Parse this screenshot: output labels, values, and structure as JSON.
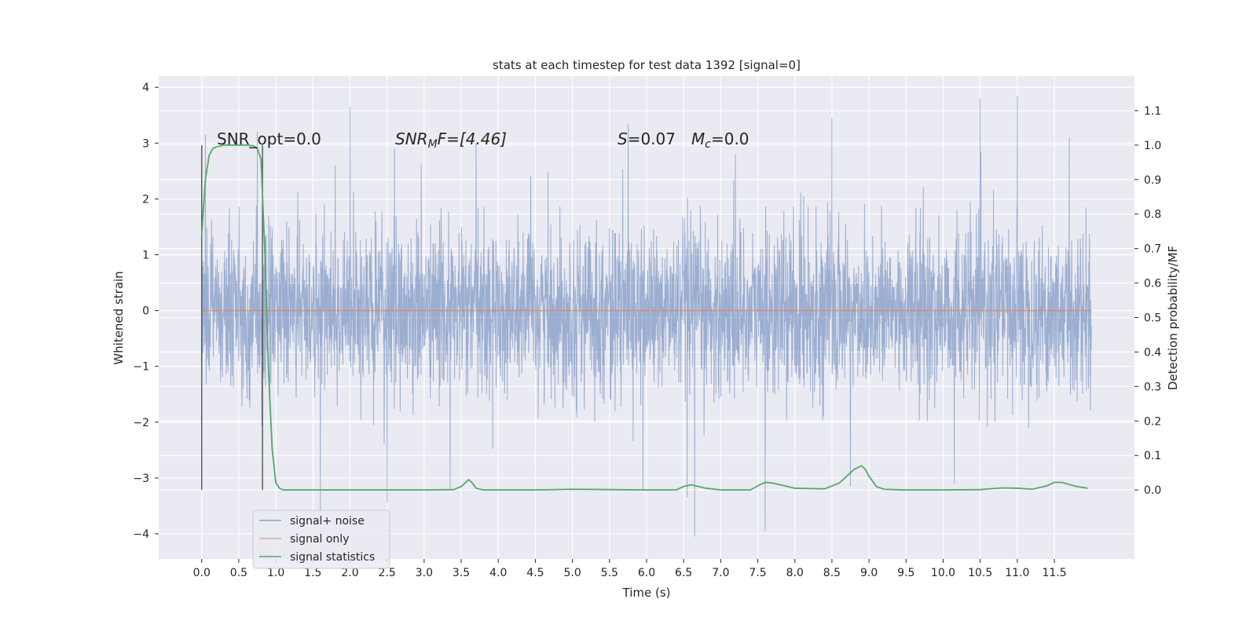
{
  "chart_data": {
    "type": "line",
    "title": "stats at each timestep for test data 1392 [signal=0]",
    "xlabel": "Time (s)",
    "ylabel_left": "Whitened strain",
    "ylabel_right": "Detection probability/MF",
    "xlim": [
      -0.58,
      12.58
    ],
    "ylim_left": [
      -4.45,
      4.2
    ],
    "ylim_right": [
      -0.2,
      1.2
    ],
    "xticks": [
      "0.0",
      "0.5",
      "1.0",
      "1.5",
      "2.0",
      "2.5",
      "3.0",
      "3.5",
      "4.0",
      "4.5",
      "5.0",
      "5.5",
      "6.0",
      "6.5",
      "7.0",
      "7.5",
      "8.0",
      "8.5",
      "9.0",
      "9.5",
      "10.0",
      "10.5",
      "11.0",
      "11.5"
    ],
    "yticks_left": [
      "4",
      "3",
      "2",
      "1",
      "0",
      "−1",
      "−2",
      "−3",
      "−4"
    ],
    "yticks_right": [
      "1.1",
      "1.0",
      "0.9",
      "0.8",
      "0.7",
      "0.6",
      "0.5",
      "0.4",
      "0.3",
      "0.2",
      "0.1",
      "0.0"
    ],
    "grid": true,
    "legend_position": "lower-left",
    "annotations": {
      "snr_opt": "SNR_opt=0.0",
      "snr_mf_sym": "SNR",
      "snr_mf_sub": "M",
      "snr_mf_rest": "F=[4.46]",
      "s_sym": "S",
      "s_val": "=0.07",
      "mc_sym": "M",
      "mc_sub": "c",
      "mc_val": "=0.0"
    },
    "window_markers": [
      0.0,
      0.82
    ],
    "series": [
      {
        "name": "signal+ noise",
        "color": "#4c72b0",
        "kind": "noise",
        "x_range": [
          0.0,
          12.0
        ],
        "typical_amplitude": 1.2,
        "peaks": [
          [
            0.05,
            3.15
          ],
          [
            0.75,
            3.2
          ],
          [
            1.8,
            2.6
          ],
          [
            2.0,
            3.65
          ],
          [
            2.6,
            2.9
          ],
          [
            3.7,
            3.0
          ],
          [
            5.75,
            3.35
          ],
          [
            7.2,
            2.8
          ],
          [
            8.5,
            3.45
          ],
          [
            10.5,
            3.8
          ],
          [
            11.0,
            3.85
          ],
          [
            11.7,
            3.1
          ]
        ],
        "troughs": [
          [
            1.6,
            -3.65
          ],
          [
            2.5,
            -3.45
          ],
          [
            3.35,
            -3.2
          ],
          [
            5.95,
            -3.2
          ],
          [
            6.55,
            -3.35
          ],
          [
            6.65,
            -4.05
          ],
          [
            7.6,
            -3.95
          ],
          [
            8.75,
            -3.15
          ],
          [
            10.15,
            -3.1
          ]
        ]
      },
      {
        "name": "signal only",
        "color": "#dd8452",
        "kind": "flat",
        "x": [
          0.0,
          12.0
        ],
        "y": [
          0.0,
          0.0
        ]
      },
      {
        "name": "signal statistics",
        "color": "#55a868",
        "kind": "curve",
        "axis": "right",
        "x": [
          0.0,
          0.05,
          0.1,
          0.15,
          0.2,
          0.3,
          0.4,
          0.5,
          0.6,
          0.7,
          0.75,
          0.8,
          0.85,
          0.9,
          0.95,
          1.0,
          1.05,
          1.1,
          1.2,
          1.5,
          2.0,
          2.5,
          3.0,
          3.4,
          3.5,
          3.55,
          3.6,
          3.65,
          3.7,
          3.8,
          4.0,
          4.5,
          5.0,
          5.5,
          6.0,
          6.4,
          6.5,
          6.6,
          6.7,
          6.8,
          7.0,
          7.4,
          7.5,
          7.6,
          7.7,
          7.8,
          8.0,
          8.4,
          8.6,
          8.7,
          8.8,
          8.9,
          8.95,
          9.0,
          9.1,
          9.2,
          9.5,
          10.0,
          10.5,
          10.8,
          11.0,
          11.2,
          11.4,
          11.5,
          11.6,
          11.8,
          11.95
        ],
        "y": [
          0.74,
          0.9,
          0.97,
          0.99,
          0.995,
          1.0,
          1.0,
          1.0,
          1.0,
          0.998,
          0.99,
          0.96,
          0.7,
          0.35,
          0.12,
          0.02,
          0.005,
          0.0,
          0.0,
          0.0,
          0.0,
          0.0,
          0.0,
          0.001,
          0.01,
          0.02,
          0.03,
          0.02,
          0.005,
          0.0,
          0.0,
          0.0,
          0.002,
          0.001,
          0.0,
          0.0,
          0.01,
          0.015,
          0.01,
          0.005,
          0.0,
          0.0,
          0.012,
          0.022,
          0.02,
          0.015,
          0.005,
          0.003,
          0.02,
          0.04,
          0.06,
          0.07,
          0.06,
          0.04,
          0.01,
          0.002,
          0.0,
          0.0,
          0.001,
          0.006,
          0.005,
          0.002,
          0.012,
          0.022,
          0.022,
          0.01,
          0.005
        ]
      }
    ]
  }
}
